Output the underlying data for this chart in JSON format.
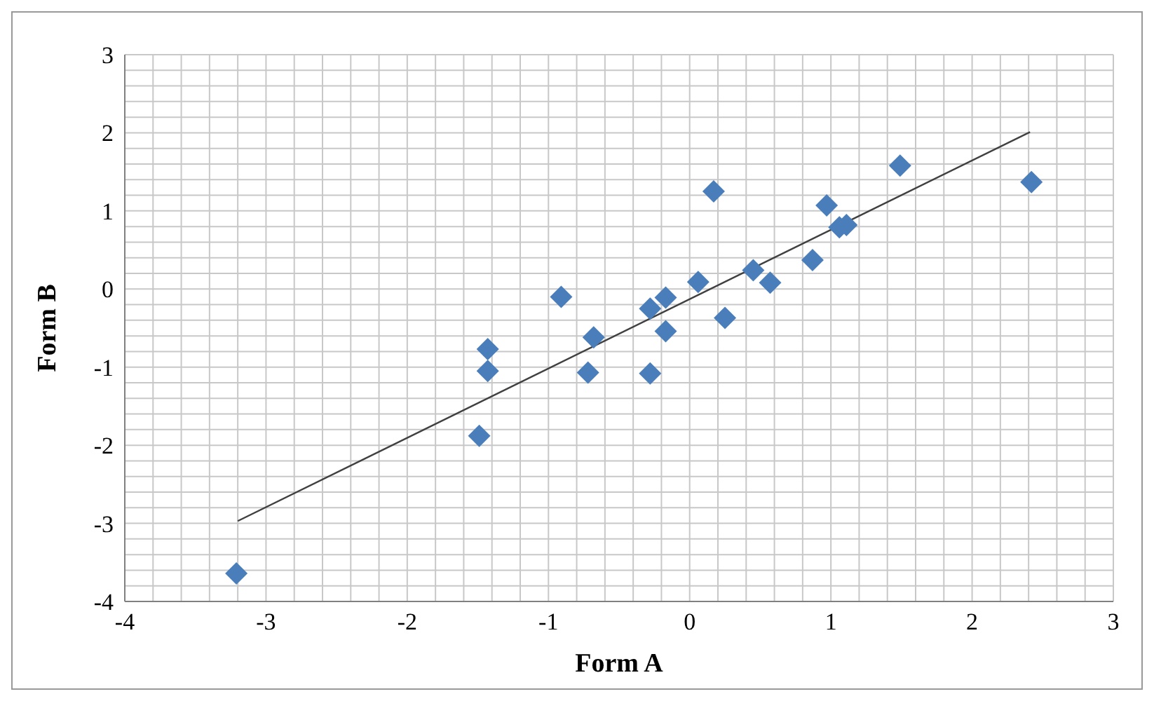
{
  "chart_data": {
    "type": "scatter",
    "xlabel": "Form A",
    "ylabel": "Form B",
    "marker": "diamond",
    "grid": true,
    "xlim": [
      -4,
      3
    ],
    "ylim": [
      -4,
      3
    ],
    "xticks": [
      -4,
      {
        "value": -3.8,
        "label": null
      },
      {
        "value": -3.6,
        "label": null
      },
      {
        "value": -3.4,
        "label": null
      },
      {
        "value": -3.2,
        "label": null
      },
      -3,
      {
        "value": -2.8,
        "label": null
      },
      {
        "value": -2.6,
        "label": null
      },
      {
        "value": -2.4,
        "label": null
      },
      {
        "value": -2.2,
        "label": null
      },
      -2,
      {
        "value": -1.8,
        "label": null
      },
      {
        "value": -1.6,
        "label": null
      },
      {
        "value": -1.4,
        "label": null
      },
      {
        "value": -1.2,
        "label": null
      },
      -1,
      {
        "value": -0.8,
        "label": null
      },
      {
        "value": -0.6,
        "label": null
      },
      {
        "value": -0.4,
        "label": null
      },
      {
        "value": -0.2,
        "label": null
      },
      0,
      {
        "value": 0.2,
        "label": null
      },
      {
        "value": 0.4,
        "label": null
      },
      {
        "value": 0.6,
        "label": null
      },
      {
        "value": 0.8,
        "label": null
      },
      1,
      {
        "value": 1.2,
        "label": null
      },
      {
        "value": 1.4,
        "label": null
      },
      {
        "value": 1.6,
        "label": null
      },
      {
        "value": 1.8,
        "label": null
      },
      2,
      {
        "value": 2.2,
        "label": null
      },
      {
        "value": 2.4,
        "label": null
      },
      {
        "value": 2.6,
        "label": null
      },
      {
        "value": 2.8,
        "label": null
      },
      3
    ],
    "yticks": [
      -4,
      {
        "value": -3.8,
        "label": null
      },
      {
        "value": -3.6,
        "label": null
      },
      {
        "value": -3.4,
        "label": null
      },
      {
        "value": -3.2,
        "label": null
      },
      -3,
      {
        "value": -2.8,
        "label": null
      },
      {
        "value": -2.6,
        "label": null
      },
      {
        "value": -2.4,
        "label": null
      },
      {
        "value": -2.2,
        "label": null
      },
      -2,
      {
        "value": -1.8,
        "label": null
      },
      {
        "value": -1.6,
        "label": null
      },
      {
        "value": -1.4,
        "label": null
      },
      {
        "value": -1.2,
        "label": null
      },
      -1,
      {
        "value": -0.8,
        "label": null
      },
      {
        "value": -0.6,
        "label": null
      },
      {
        "value": -0.4,
        "label": null
      },
      {
        "value": -0.2,
        "label": null
      },
      0,
      {
        "value": 0.2,
        "label": null
      },
      {
        "value": 0.4,
        "label": null
      },
      {
        "value": 0.6,
        "label": null
      },
      {
        "value": 0.8,
        "label": null
      },
      1,
      {
        "value": 1.2,
        "label": null
      },
      {
        "value": 1.4,
        "label": null
      },
      {
        "value": 1.6,
        "label": null
      },
      {
        "value": 1.8,
        "label": null
      },
      2,
      {
        "value": 2.2,
        "label": null
      },
      {
        "value": 2.4,
        "label": null
      },
      {
        "value": 2.6,
        "label": null
      },
      {
        "value": 2.8,
        "label": null
      },
      3
    ],
    "series": [
      {
        "color": "#4a7ebb",
        "x": [
          -3.21,
          -1.49,
          -1.43,
          -1.43,
          -0.91,
          -0.68,
          -0.72,
          -0.28,
          -0.28,
          -0.17,
          -0.17,
          0.06,
          0.17,
          0.25,
          0.45,
          0.57,
          0.87,
          0.97,
          1.06,
          1.11,
          1.49,
          2.42
        ],
        "values": [
          -3.64,
          -1.88,
          -0.77,
          -1.05,
          -0.1,
          -0.62,
          -1.07,
          -1.08,
          -0.25,
          -0.11,
          -0.54,
          0.09,
          1.25,
          -0.37,
          0.24,
          0.08,
          0.37,
          1.07,
          0.79,
          0.82,
          1.58,
          1.37
        ]
      },
      {
        "type": "line",
        "color": "#404040",
        "marker": "none",
        "x": [
          -3.2,
          2.41
        ],
        "values": [
          -2.97,
          2.01
        ]
      }
    ]
  }
}
